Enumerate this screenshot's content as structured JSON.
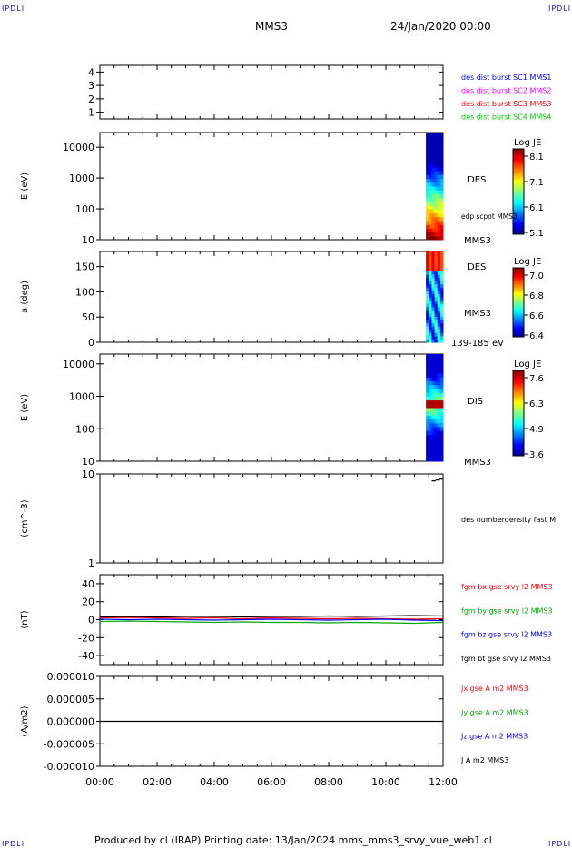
{
  "header": {
    "left_mark": "IPDLI",
    "right_mark": "IPDLI",
    "title": "MMS3",
    "date": "24/Jan/2020 00:00"
  },
  "footer": {
    "text": "Produced by cl (IRAP)   Printing date: 13/Jan/2024   mms_mms3_srvy_vue_web1.cl",
    "left_mark": "IPDLI",
    "right_mark": "IPDLI"
  },
  "colors": {
    "mms1": "#0000ff",
    "mms2": "#ff00ff",
    "mms3": "#ff0000",
    "mms4": "#00cc00",
    "bx": "#ff0000",
    "by": "#00aa00",
    "bz": "#0000ff",
    "bt": "#000000",
    "corner_marks": "#1010c0"
  },
  "x_axis": {
    "ticks": [
      "00:00",
      "02:00",
      "04:00",
      "06:00",
      "08:00",
      "10:00",
      "12:00"
    ],
    "range_hours": [
      0,
      12
    ]
  },
  "chart_data": [
    {
      "type": "table",
      "panel": "spacecraft-availability",
      "ylim": [
        0.5,
        4.5
      ],
      "yticks": [
        "1",
        "2",
        "3",
        "4"
      ],
      "legend": [
        {
          "label": "des dist burst SC1 MMS1",
          "color": "#0000ff"
        },
        {
          "label": "des dist burst SC2 MMS2",
          "color": "#ff00ff"
        },
        {
          "label": "des dist burst SC3 MMS3",
          "color": "#ff0000"
        },
        {
          "label": "des dist burst SC4 MMS4",
          "color": "#00cc00"
        }
      ]
    },
    {
      "type": "heatmap",
      "panel": "des-energy-spectrogram",
      "ylabel": "E (eV)",
      "yscale": "log",
      "ylim": [
        10,
        30000
      ],
      "yticks": [
        "10",
        "100",
        "1000",
        "10000"
      ],
      "x_active_hours": [
        11.4,
        12.0
      ],
      "species_label": "DES",
      "overlay_label": "edp scpot MMS3",
      "spacecraft_label": "MMS3",
      "colorbar": {
        "title": "Log JE",
        "min": 5.1,
        "max": 8.1,
        "ticks": [
          "8.1",
          "7.1",
          "6.1",
          "5.1"
        ]
      }
    },
    {
      "type": "heatmap",
      "panel": "des-pitch-angle",
      "ylabel": "a (deg)",
      "ylim": [
        0,
        180
      ],
      "yticks": [
        "0",
        "50",
        "100",
        "150"
      ],
      "x_active_hours": [
        11.4,
        12.0
      ],
      "species_label": "DES",
      "spacecraft_label": "MMS3",
      "energy_label": "139-185 eV",
      "colorbar": {
        "title": "Log JE",
        "min": 6.4,
        "max": 7.0,
        "ticks": [
          "7.0",
          "6.8",
          "6.6",
          "6.4"
        ]
      }
    },
    {
      "type": "heatmap",
      "panel": "dis-energy-spectrogram",
      "ylabel": "E (eV)",
      "yscale": "log",
      "ylim": [
        10,
        20000
      ],
      "yticks": [
        "10",
        "100",
        "1000",
        "10000"
      ],
      "x_active_hours": [
        11.4,
        12.0
      ],
      "species_label": "DIS",
      "spacecraft_label": "MMS3",
      "colorbar": {
        "title": "Log JE",
        "min": 3.6,
        "max": 7.6,
        "ticks": [
          "7.6",
          "6.3",
          "4.9",
          "3.6"
        ]
      }
    },
    {
      "type": "line",
      "panel": "density",
      "ylabel": "(cm^-3)",
      "yscale": "log",
      "ylim": [
        1,
        10
      ],
      "yticks": [
        "1",
        "10"
      ],
      "legend": [
        {
          "label": "des numberdensity fast M",
          "color": "#000000"
        }
      ],
      "series": [
        {
          "label_ref": 0,
          "x": [
            11.6,
            11.65,
            11.7,
            11.75,
            11.8,
            11.85,
            11.9,
            11.95,
            12.0
          ],
          "values": [
            8.3,
            8.4,
            8.3,
            8.5,
            8.6,
            8.5,
            8.8,
            8.7,
            8.9
          ]
        }
      ]
    },
    {
      "type": "line",
      "panel": "magnetic-field",
      "ylabel": "(nT)",
      "ylim": [
        -50,
        50
      ],
      "yticks": [
        "-40",
        "-20",
        "0",
        "20",
        "40"
      ],
      "legend": [
        {
          "label": "fgm bx gse srvy l2 MMS3",
          "color": "#ff0000"
        },
        {
          "label": "fgm by gse srvy l2 MMS3",
          "color": "#00aa00"
        },
        {
          "label": "fgm bz gse srvy l2 MMS3",
          "color": "#0000ff"
        },
        {
          "label": "fgm bt gse srvy l2 MMS3",
          "color": "#000000"
        }
      ],
      "series": [
        {
          "label_ref": 0,
          "x": [
            0,
            1,
            2,
            3,
            4,
            5,
            6,
            7,
            8,
            9,
            10,
            11,
            12
          ],
          "values": [
            2,
            2.5,
            2,
            1.5,
            2,
            1,
            2,
            1.5,
            1,
            1.5,
            1,
            0.5,
            1
          ]
        },
        {
          "label_ref": 1,
          "x": [
            0,
            1,
            2,
            3,
            4,
            5,
            6,
            7,
            8,
            9,
            10,
            11,
            12
          ],
          "values": [
            -2,
            -1.5,
            -2,
            -2.5,
            -3,
            -2.5,
            -3,
            -3,
            -3.5,
            -3,
            -3.5,
            -4,
            -3
          ]
        },
        {
          "label_ref": 2,
          "x": [
            0,
            1,
            2,
            3,
            4,
            5,
            6,
            7,
            8,
            9,
            10,
            11,
            12
          ],
          "values": [
            0.5,
            0,
            0.5,
            0,
            -0.5,
            0,
            0.5,
            0,
            -0.5,
            0,
            0.5,
            -0.5,
            -1
          ]
        },
        {
          "label_ref": 3,
          "x": [
            0,
            1,
            2,
            3,
            4,
            5,
            6,
            7,
            8,
            9,
            10,
            11,
            12
          ],
          "values": [
            3,
            3.5,
            3,
            3.5,
            3.5,
            3,
            3.5,
            3.5,
            4,
            3.5,
            4,
            4.5,
            4
          ]
        }
      ]
    },
    {
      "type": "line",
      "panel": "current-density",
      "ylabel": "(A/m2)",
      "ylim": [
        -1e-05,
        1e-05
      ],
      "yticks": [
        "-0.000010",
        "-0.000005",
        "0.000000",
        "0.000005",
        "0.000010"
      ],
      "legend": [
        {
          "label": "Jx gse A m2 MMS3",
          "color": "#ff0000"
        },
        {
          "label": "Jy gse A m2 MMS3",
          "color": "#00aa00"
        },
        {
          "label": "Jz gse A m2 MMS3",
          "color": "#0000ff"
        },
        {
          "label": "J A m2 MMS3",
          "color": "#000000"
        }
      ],
      "series": [
        {
          "label_ref": 3,
          "x": [
            0,
            12
          ],
          "values": [
            0,
            0
          ]
        }
      ]
    }
  ]
}
